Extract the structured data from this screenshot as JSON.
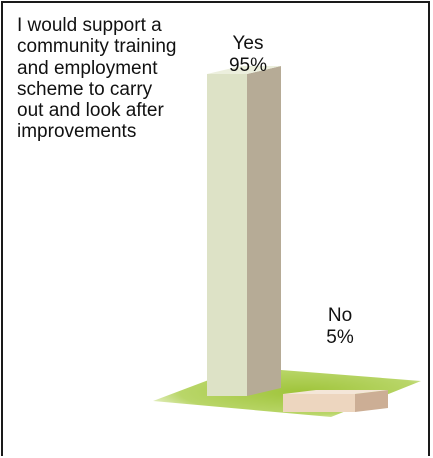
{
  "chart_data": {
    "type": "bar",
    "title": "I would support a community training and employment scheme to carry out and look after improvements",
    "categories": [
      "Yes",
      "No"
    ],
    "values": [
      95,
      5
    ],
    "value_labels": [
      "95%",
      "5%"
    ],
    "ylim": [
      0,
      100
    ],
    "grid": false,
    "legend": "none"
  },
  "colors": {
    "yes_front": "#dde2c6",
    "yes_side": "#b6ab96",
    "yes_top": "#ecefdd",
    "no_front": "#edd6bf",
    "no_side": "#ccae95",
    "no_top": "#f4e6d8",
    "base": "#9fc43a",
    "base_light": "#c7dd84"
  }
}
